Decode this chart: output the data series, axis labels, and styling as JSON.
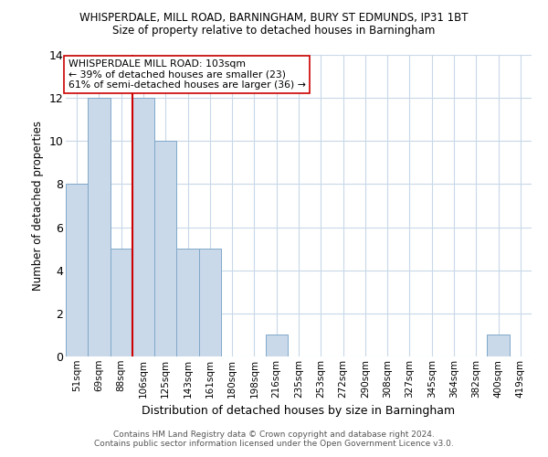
{
  "title1": "WHISPERDALE, MILL ROAD, BARNINGHAM, BURY ST EDMUNDS, IP31 1BT",
  "title2": "Size of property relative to detached houses in Barningham",
  "xlabel": "Distribution of detached houses by size in Barningham",
  "ylabel": "Number of detached properties",
  "footnote": "Contains HM Land Registry data © Crown copyright and database right 2024.\nContains public sector information licensed under the Open Government Licence v3.0.",
  "bin_labels": [
    "51sqm",
    "69sqm",
    "88sqm",
    "106sqm",
    "125sqm",
    "143sqm",
    "161sqm",
    "180sqm",
    "198sqm",
    "216sqm",
    "235sqm",
    "253sqm",
    "272sqm",
    "290sqm",
    "308sqm",
    "327sqm",
    "345sqm",
    "364sqm",
    "382sqm",
    "400sqm",
    "419sqm"
  ],
  "bar_heights": [
    8,
    12,
    5,
    12,
    10,
    5,
    5,
    0,
    0,
    1,
    0,
    0,
    0,
    0,
    0,
    0,
    0,
    0,
    0,
    1,
    0
  ],
  "marker_bin_index": 3,
  "marker_label": "WHISPERDALE MILL ROAD: 103sqm",
  "annotation_line1": "← 39% of detached houses are smaller (23)",
  "annotation_line2": "61% of semi-detached houses are larger (36) →",
  "bar_color": "#cad9ea",
  "bar_edge_color": "#7fa8c9",
  "marker_color": "#cc0000",
  "annotation_box_edge_color": "#cc0000",
  "background_color": "#ffffff",
  "grid_color": "#c8d8e8",
  "ylim": [
    0,
    14
  ],
  "yticks": [
    0,
    2,
    4,
    6,
    8,
    10,
    12,
    14
  ]
}
